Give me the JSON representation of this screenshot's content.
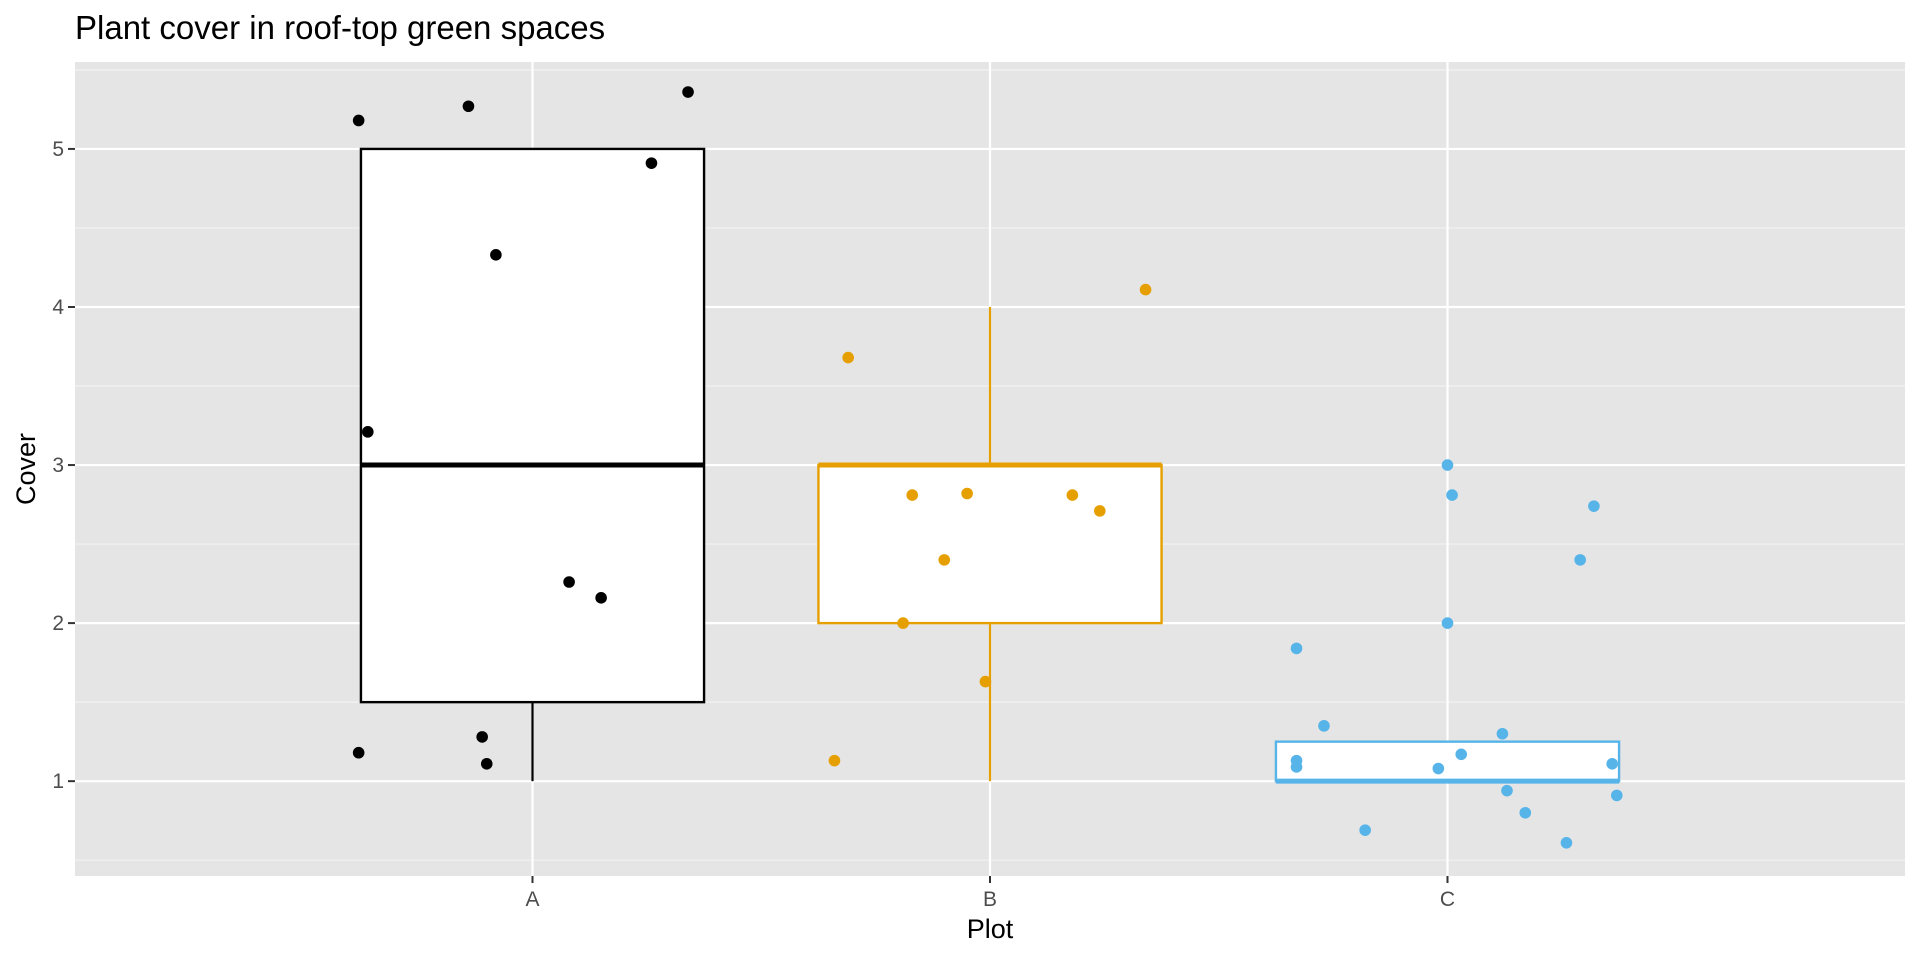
{
  "chart_data": {
    "type": "boxplot",
    "title": "Plant cover in roof-top green spaces",
    "xlabel": "Plot",
    "ylabel": "Cover",
    "categories": [
      "A",
      "B",
      "C"
    ],
    "ylim": [
      0.4,
      5.55
    ],
    "yticks": [
      1,
      2,
      3,
      4,
      5
    ],
    "grid": true,
    "legend": "none",
    "colors": {
      "A": "#000000",
      "B": "#E69F00",
      "C": "#56B4E9"
    },
    "boxes": [
      {
        "category": "A",
        "q1": 1.5,
        "median": 3.0,
        "q3": 5.0,
        "whisker_low": 1.0,
        "whisker_high": 5.0
      },
      {
        "category": "B",
        "q1": 2.0,
        "median": 3.0,
        "q3": 3.0,
        "whisker_low": 1.0,
        "whisker_high": 4.0
      },
      {
        "category": "C",
        "q1": 1.0,
        "median": 1.0,
        "q3": 1.25,
        "whisker_low": 1.0,
        "whisker_high": 1.25
      }
    ],
    "points": [
      {
        "category": "A",
        "jitter": -0.38,
        "y": 5.18
      },
      {
        "category": "A",
        "jitter": -0.14,
        "y": 5.27
      },
      {
        "category": "A",
        "jitter": 0.34,
        "y": 5.36
      },
      {
        "category": "A",
        "jitter": 0.26,
        "y": 4.91
      },
      {
        "category": "A",
        "jitter": -0.08,
        "y": 4.33
      },
      {
        "category": "A",
        "jitter": -0.36,
        "y": 3.21
      },
      {
        "category": "A",
        "jitter": 0.08,
        "y": 2.26
      },
      {
        "category": "A",
        "jitter": 0.15,
        "y": 2.16
      },
      {
        "category": "A",
        "jitter": -0.38,
        "y": 1.18
      },
      {
        "category": "A",
        "jitter": -0.11,
        "y": 1.28
      },
      {
        "category": "A",
        "jitter": -0.1,
        "y": 1.11
      },
      {
        "category": "B",
        "jitter": -0.31,
        "y": 3.68
      },
      {
        "category": "B",
        "jitter": 0.34,
        "y": 4.11
      },
      {
        "category": "B",
        "jitter": -0.17,
        "y": 2.81
      },
      {
        "category": "B",
        "jitter": -0.05,
        "y": 2.82
      },
      {
        "category": "B",
        "jitter": 0.18,
        "y": 2.81
      },
      {
        "category": "B",
        "jitter": 0.24,
        "y": 2.71
      },
      {
        "category": "B",
        "jitter": -0.1,
        "y": 2.4
      },
      {
        "category": "B",
        "jitter": -0.19,
        "y": 2.0
      },
      {
        "category": "B",
        "jitter": -0.01,
        "y": 1.63
      },
      {
        "category": "B",
        "jitter": -0.34,
        "y": 1.13
      },
      {
        "category": "C",
        "jitter": 0.0,
        "y": 3.0
      },
      {
        "category": "C",
        "jitter": 0.01,
        "y": 2.81
      },
      {
        "category": "C",
        "jitter": 0.32,
        "y": 2.74
      },
      {
        "category": "C",
        "jitter": 0.29,
        "y": 2.4
      },
      {
        "category": "C",
        "jitter": 0.0,
        "y": 2.0
      },
      {
        "category": "C",
        "jitter": -0.33,
        "y": 1.84
      },
      {
        "category": "C",
        "jitter": -0.27,
        "y": 1.35
      },
      {
        "category": "C",
        "jitter": 0.12,
        "y": 1.3
      },
      {
        "category": "C",
        "jitter": 0.03,
        "y": 1.17
      },
      {
        "category": "C",
        "jitter": -0.33,
        "y": 1.13
      },
      {
        "category": "C",
        "jitter": -0.33,
        "y": 1.09
      },
      {
        "category": "C",
        "jitter": -0.02,
        "y": 1.08
      },
      {
        "category": "C",
        "jitter": 0.36,
        "y": 1.11
      },
      {
        "category": "C",
        "jitter": 0.13,
        "y": 0.94
      },
      {
        "category": "C",
        "jitter": 0.17,
        "y": 0.8
      },
      {
        "category": "C",
        "jitter": 0.37,
        "y": 0.91
      },
      {
        "category": "C",
        "jitter": -0.18,
        "y": 0.69
      },
      {
        "category": "C",
        "jitter": 0.26,
        "y": 0.61
      }
    ]
  }
}
